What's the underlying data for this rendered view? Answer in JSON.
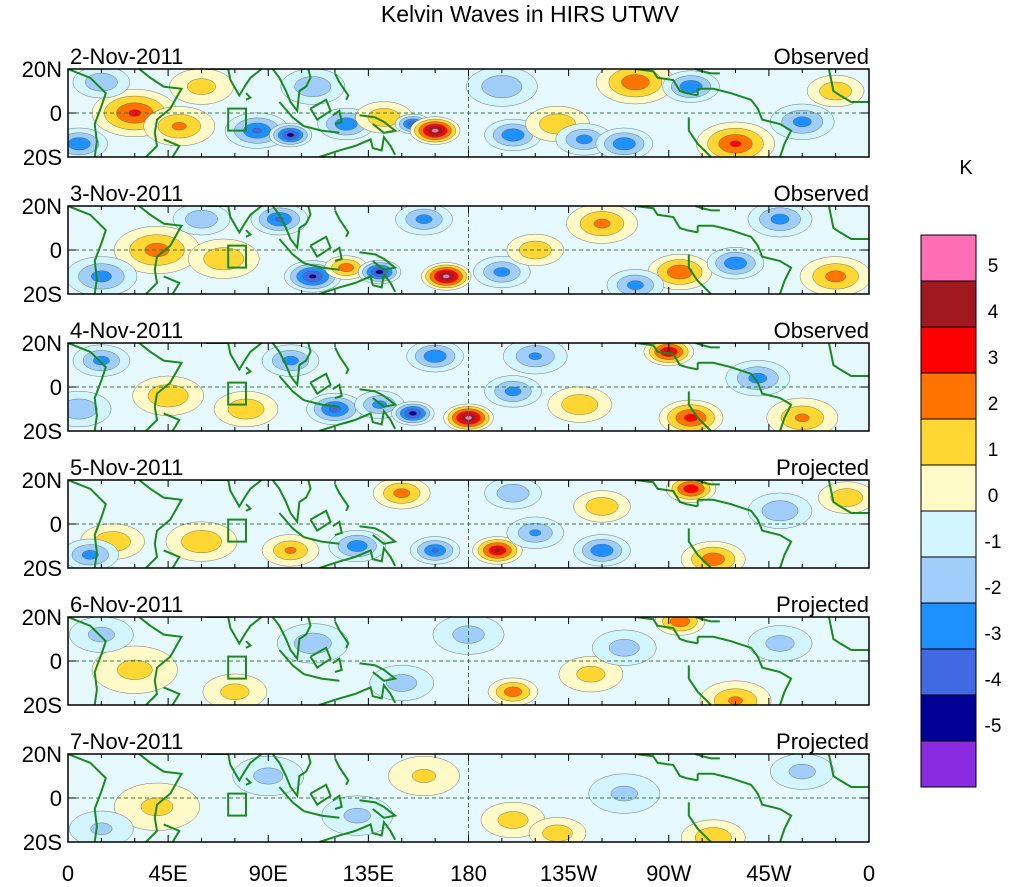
{
  "chart_data": {
    "type": "heatmap",
    "title": "Kelvin Waves in HIRS UTWV",
    "unit_label": "K",
    "y_tick_labels": [
      "20N",
      "0",
      "20S"
    ],
    "x_tick_labels": [
      "0",
      "45E",
      "90E",
      "135E",
      "180",
      "135W",
      "90W",
      "45W",
      "0"
    ],
    "x_tick_lons": [
      0,
      45,
      90,
      135,
      180,
      225,
      270,
      315,
      360
    ],
    "lat_range": [
      -20,
      20
    ],
    "lon_range": [
      0,
      360
    ],
    "panels": [
      {
        "date": "2-Nov-2011",
        "status": "Observed",
        "anomalies": [
          {
            "lon": 30,
            "lat": 0,
            "val": 3.2,
            "r": 12
          },
          {
            "lon": 50,
            "lat": -6,
            "val": 2.2,
            "r": 10
          },
          {
            "lon": 85,
            "lat": -8,
            "val": -3.2,
            "r": 9
          },
          {
            "lon": 100,
            "lat": -10,
            "val": -4.5,
            "r": 6
          },
          {
            "lon": 125,
            "lat": -5,
            "val": -3,
            "r": 8
          },
          {
            "lon": 142,
            "lat": -2,
            "val": 2,
            "r": 8
          },
          {
            "lon": 155,
            "lat": -5,
            "val": -4,
            "r": 5
          },
          {
            "lon": 165,
            "lat": -8,
            "val": 5.5,
            "r": 7
          },
          {
            "lon": 200,
            "lat": -10,
            "val": -3,
            "r": 8
          },
          {
            "lon": 220,
            "lat": -5,
            "val": 2,
            "r": 9
          },
          {
            "lon": 232,
            "lat": -12,
            "val": -2.5,
            "r": 8
          },
          {
            "lon": 250,
            "lat": -14,
            "val": -3,
            "r": 8
          },
          {
            "lon": 255,
            "lat": 14,
            "val": 2.8,
            "r": 11
          },
          {
            "lon": 280,
            "lat": 12,
            "val": -3,
            "r": 8
          },
          {
            "lon": 300,
            "lat": -14,
            "val": 3.2,
            "r": 11
          },
          {
            "lon": 330,
            "lat": -4,
            "val": -2.5,
            "r": 9
          },
          {
            "lon": 345,
            "lat": 10,
            "val": 2,
            "r": 8
          },
          {
            "lon": 15,
            "lat": 14,
            "val": -2,
            "r": 8
          },
          {
            "lon": 5,
            "lat": -14,
            "val": -3,
            "r": 8
          },
          {
            "lon": 195,
            "lat": 12,
            "val": -2,
            "r": 10
          },
          {
            "lon": 110,
            "lat": 12,
            "val": -2,
            "r": 9
          },
          {
            "lon": 60,
            "lat": 12,
            "val": 1.5,
            "r": 9
          }
        ]
      },
      {
        "date": "3-Nov-2011",
        "status": "Observed",
        "anomalies": [
          {
            "lon": 40,
            "lat": 0,
            "val": 2.5,
            "r": 12
          },
          {
            "lon": 70,
            "lat": -4,
            "val": 2,
            "r": 10
          },
          {
            "lon": 110,
            "lat": -12,
            "val": -4.3,
            "r": 8
          },
          {
            "lon": 125,
            "lat": -8,
            "val": 2.8,
            "r": 6
          },
          {
            "lon": 140,
            "lat": -10,
            "val": -4.6,
            "r": 6
          },
          {
            "lon": 170,
            "lat": -12,
            "val": 5.5,
            "r": 7
          },
          {
            "lon": 195,
            "lat": -10,
            "val": -2.5,
            "r": 8
          },
          {
            "lon": 210,
            "lat": 0,
            "val": 2,
            "r": 8
          },
          {
            "lon": 240,
            "lat": 12,
            "val": 2.3,
            "r": 10
          },
          {
            "lon": 275,
            "lat": -10,
            "val": 3,
            "r": 9
          },
          {
            "lon": 300,
            "lat": -6,
            "val": -3,
            "r": 8
          },
          {
            "lon": 320,
            "lat": 14,
            "val": -2.5,
            "r": 9
          },
          {
            "lon": 345,
            "lat": -12,
            "val": 2.5,
            "r": 10
          },
          {
            "lon": 15,
            "lat": -12,
            "val": -2.5,
            "r": 10
          },
          {
            "lon": 95,
            "lat": 14,
            "val": -3.2,
            "r": 8
          },
          {
            "lon": 160,
            "lat": 14,
            "val": -2.5,
            "r": 8
          },
          {
            "lon": 60,
            "lat": 14,
            "val": -2,
            "r": 8
          },
          {
            "lon": 255,
            "lat": -16,
            "val": -2.5,
            "r": 8
          }
        ]
      },
      {
        "date": "4-Nov-2011",
        "status": "Observed",
        "anomalies": [
          {
            "lon": 45,
            "lat": -4,
            "val": 2,
            "r": 10
          },
          {
            "lon": 80,
            "lat": -10,
            "val": 2,
            "r": 9
          },
          {
            "lon": 120,
            "lat": -10,
            "val": -3.5,
            "r": 8
          },
          {
            "lon": 140,
            "lat": -8,
            "val": -2.5,
            "r": 7
          },
          {
            "lon": 155,
            "lat": -12,
            "val": -4.6,
            "r": 6
          },
          {
            "lon": 180,
            "lat": -14,
            "val": 5.5,
            "r": 7
          },
          {
            "lon": 200,
            "lat": -2,
            "val": -2.5,
            "r": 8
          },
          {
            "lon": 230,
            "lat": -8,
            "val": 2,
            "r": 9
          },
          {
            "lon": 270,
            "lat": 16,
            "val": 4.3,
            "r": 7
          },
          {
            "lon": 280,
            "lat": -14,
            "val": 3.5,
            "r": 9
          },
          {
            "lon": 310,
            "lat": 4,
            "val": -2.5,
            "r": 9
          },
          {
            "lon": 330,
            "lat": -14,
            "val": 2.2,
            "r": 10
          },
          {
            "lon": 15,
            "lat": 12,
            "val": -2.5,
            "r": 8
          },
          {
            "lon": 5,
            "lat": -10,
            "val": -2,
            "r": 9
          },
          {
            "lon": 165,
            "lat": 14,
            "val": -3,
            "r": 8
          },
          {
            "lon": 210,
            "lat": 14,
            "val": -2.2,
            "r": 9
          },
          {
            "lon": 100,
            "lat": 12,
            "val": -2.5,
            "r": 8
          }
        ]
      },
      {
        "date": "5-Nov-2011",
        "status": "Projected",
        "anomalies": [
          {
            "lon": 20,
            "lat": -8,
            "val": 2,
            "r": 9
          },
          {
            "lon": 60,
            "lat": -8,
            "val": 2,
            "r": 10
          },
          {
            "lon": 100,
            "lat": -12,
            "val": 2.2,
            "r": 8
          },
          {
            "lon": 130,
            "lat": -10,
            "val": -2.8,
            "r": 8
          },
          {
            "lon": 165,
            "lat": -12,
            "val": -3.2,
            "r": 7
          },
          {
            "lon": 193,
            "lat": -12,
            "val": 4.3,
            "r": 7
          },
          {
            "lon": 210,
            "lat": -4,
            "val": -2.2,
            "r": 8
          },
          {
            "lon": 240,
            "lat": -12,
            "val": -3,
            "r": 8
          },
          {
            "lon": 280,
            "lat": 16,
            "val": 4,
            "r": 7
          },
          {
            "lon": 290,
            "lat": -16,
            "val": 2.8,
            "r": 9
          },
          {
            "lon": 320,
            "lat": 6,
            "val": -2,
            "r": 9
          },
          {
            "lon": 350,
            "lat": 12,
            "val": 2,
            "r": 8
          },
          {
            "lon": 10,
            "lat": -14,
            "val": -2.5,
            "r": 8
          },
          {
            "lon": 150,
            "lat": 14,
            "val": 2.5,
            "r": 8
          },
          {
            "lon": 200,
            "lat": 14,
            "val": -2,
            "r": 8
          },
          {
            "lon": 240,
            "lat": 8,
            "val": 2,
            "r": 8
          }
        ]
      },
      {
        "date": "6-Nov-2011",
        "status": "Projected",
        "anomalies": [
          {
            "lon": 30,
            "lat": -4,
            "val": 1.4,
            "r": 12
          },
          {
            "lon": 75,
            "lat": -14,
            "val": 1.5,
            "r": 9
          },
          {
            "lon": 110,
            "lat": 8,
            "val": -1.8,
            "r": 10
          },
          {
            "lon": 150,
            "lat": -10,
            "val": -1.6,
            "r": 9
          },
          {
            "lon": 200,
            "lat": -14,
            "val": 2.8,
            "r": 7
          },
          {
            "lon": 235,
            "lat": -6,
            "val": 1.5,
            "r": 9
          },
          {
            "lon": 275,
            "lat": 18,
            "val": 3,
            "r": 7
          },
          {
            "lon": 300,
            "lat": -18,
            "val": 2.2,
            "r": 10
          },
          {
            "lon": 320,
            "lat": 8,
            "val": -1.5,
            "r": 9
          },
          {
            "lon": 250,
            "lat": 6,
            "val": -1.6,
            "r": 9
          },
          {
            "lon": 180,
            "lat": 12,
            "val": -1.5,
            "r": 10
          },
          {
            "lon": 15,
            "lat": 12,
            "val": -1.4,
            "r": 9
          }
        ]
      },
      {
        "date": "7-Nov-2011",
        "status": "Projected",
        "anomalies": [
          {
            "lon": 40,
            "lat": -4,
            "val": 1.3,
            "r": 12
          },
          {
            "lon": 90,
            "lat": 10,
            "val": -1.4,
            "r": 10
          },
          {
            "lon": 130,
            "lat": -8,
            "val": -1.3,
            "r": 10
          },
          {
            "lon": 200,
            "lat": -10,
            "val": 1.6,
            "r": 9
          },
          {
            "lon": 220,
            "lat": -16,
            "val": 1.8,
            "r": 8
          },
          {
            "lon": 250,
            "lat": 2,
            "val": -1.3,
            "r": 10
          },
          {
            "lon": 290,
            "lat": -18,
            "val": 2,
            "r": 9
          },
          {
            "lon": 330,
            "lat": 12,
            "val": -1.4,
            "r": 9
          },
          {
            "lon": 160,
            "lat": 10,
            "val": 1.2,
            "r": 10
          },
          {
            "lon": 15,
            "lat": -14,
            "val": -1.2,
            "r": 9
          }
        ]
      }
    ],
    "legend": {
      "colors": [
        "#8a2be2",
        "#000096",
        "#4169e1",
        "#1e90ff",
        "#a0cdfa",
        "#d2f5ff",
        "#fffac8",
        "#ffd732",
        "#ff7300",
        "#ff0000",
        "#a0191e",
        "#ff6eb4"
      ],
      "tick_labels": [
        "-5",
        "-4",
        "-3",
        "-2",
        "-1",
        "0",
        "1",
        "2",
        "3",
        "4",
        "5"
      ]
    }
  }
}
